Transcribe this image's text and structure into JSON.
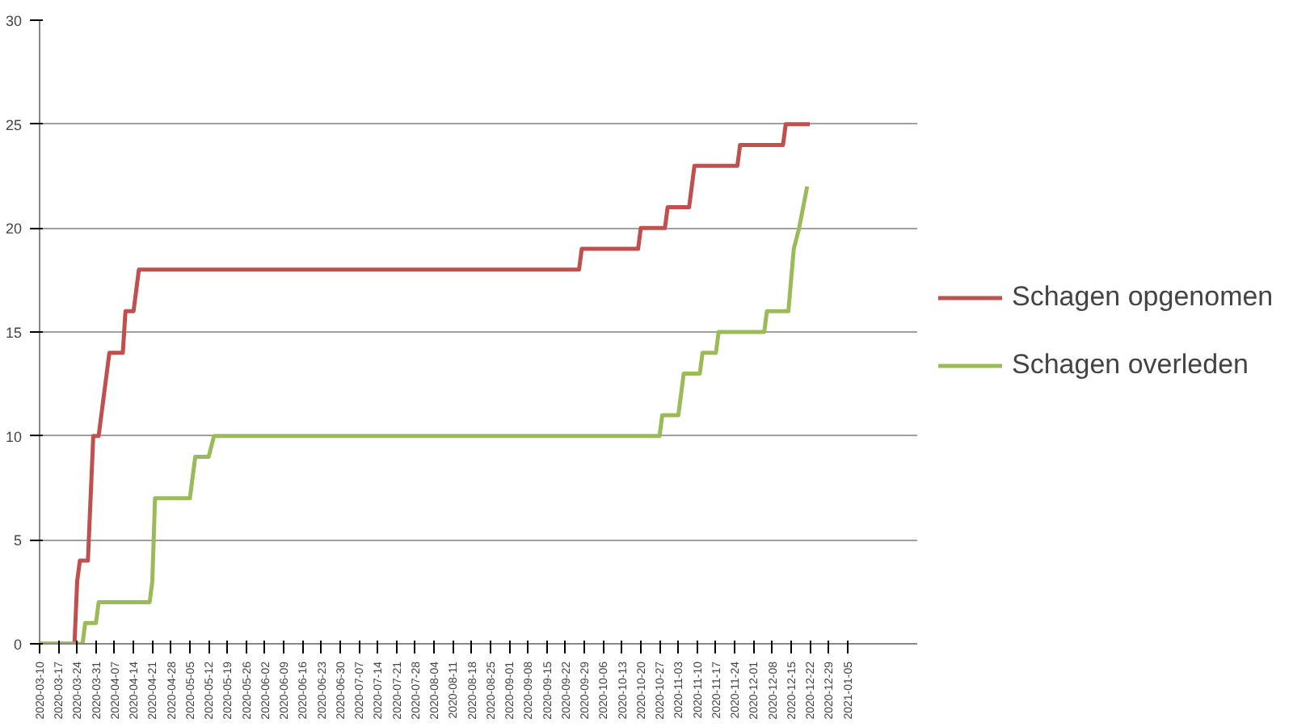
{
  "chart_data": {
    "type": "line",
    "xlim": [
      "2020-03-10",
      "2021-01-31"
    ],
    "ylim": [
      0,
      30
    ],
    "yticks": [
      0,
      5,
      10,
      15,
      20,
      25,
      30
    ],
    "xticks": [
      "2020-03-10",
      "2020-03-17",
      "2020-03-24",
      "2020-03-31",
      "2020-04-07",
      "2020-04-14",
      "2020-04-21",
      "2020-04-28",
      "2020-05-05",
      "2020-05-12",
      "2020-05-19",
      "2020-05-26",
      "2020-06-02",
      "2020-06-09",
      "2020-06-16",
      "2020-06-23",
      "2020-06-30",
      "2020-07-07",
      "2020-07-14",
      "2020-07-21",
      "2020-07-28",
      "2020-08-04",
      "2020-08-11",
      "2020-08-18",
      "2020-08-25",
      "2020-09-01",
      "2020-09-08",
      "2020-09-15",
      "2020-09-22",
      "2020-09-29",
      "2020-10-06",
      "2020-10-13",
      "2020-10-20",
      "2020-10-27",
      "2020-11-03",
      "2020-11-10",
      "2020-11-17",
      "2020-11-24",
      "2020-12-01",
      "2020-12-08",
      "2020-12-15",
      "2020-12-22",
      "2020-12-29",
      "2021-01-05"
    ],
    "grid": "y",
    "legend": "right",
    "marker": "none",
    "line_style": "solid",
    "series": [
      {
        "name": "Schagen opgenomen",
        "color": "#c0504d",
        "x": [
          "2020-03-10",
          "2020-03-23",
          "2020-03-24",
          "2020-03-25",
          "2020-03-28",
          "2020-03-30",
          "2020-04-01",
          "2020-04-05",
          "2020-04-10",
          "2020-04-11",
          "2020-04-14",
          "2020-04-15",
          "2020-04-16",
          "2020-09-27",
          "2020-09-28",
          "2020-10-19",
          "2020-10-20",
          "2020-10-29",
          "2020-10-30",
          "2020-11-07",
          "2020-11-08",
          "2020-11-09",
          "2020-11-25",
          "2020-11-26",
          "2020-12-12",
          "2020-12-13",
          "2020-12-22"
        ],
        "values": [
          0,
          0,
          3,
          4,
          4,
          10,
          10,
          14,
          14,
          16,
          16,
          17,
          18,
          18,
          19,
          19,
          20,
          20,
          21,
          21,
          22,
          23,
          23,
          24,
          24,
          25,
          25
        ]
      },
      {
        "name": "Schagen overleden",
        "color": "#9bbb59",
        "x": [
          "2020-03-10",
          "2020-03-26",
          "2020-03-27",
          "2020-03-31",
          "2020-04-01",
          "2020-04-20",
          "2020-04-21",
          "2020-04-22",
          "2020-05-05",
          "2020-05-07",
          "2020-05-12",
          "2020-05-14",
          "2020-10-27",
          "2020-10-28",
          "2020-11-03",
          "2020-11-05",
          "2020-11-11",
          "2020-11-12",
          "2020-11-17",
          "2020-11-18",
          "2020-12-05",
          "2020-12-06",
          "2020-12-14",
          "2020-12-16",
          "2020-12-18",
          "2020-12-21"
        ],
        "values": [
          0,
          0,
          1,
          1,
          2,
          2,
          3,
          7,
          7,
          9,
          9,
          10,
          10,
          11,
          11,
          13,
          13,
          14,
          14,
          15,
          15,
          16,
          16,
          19,
          20,
          22
        ]
      }
    ]
  }
}
